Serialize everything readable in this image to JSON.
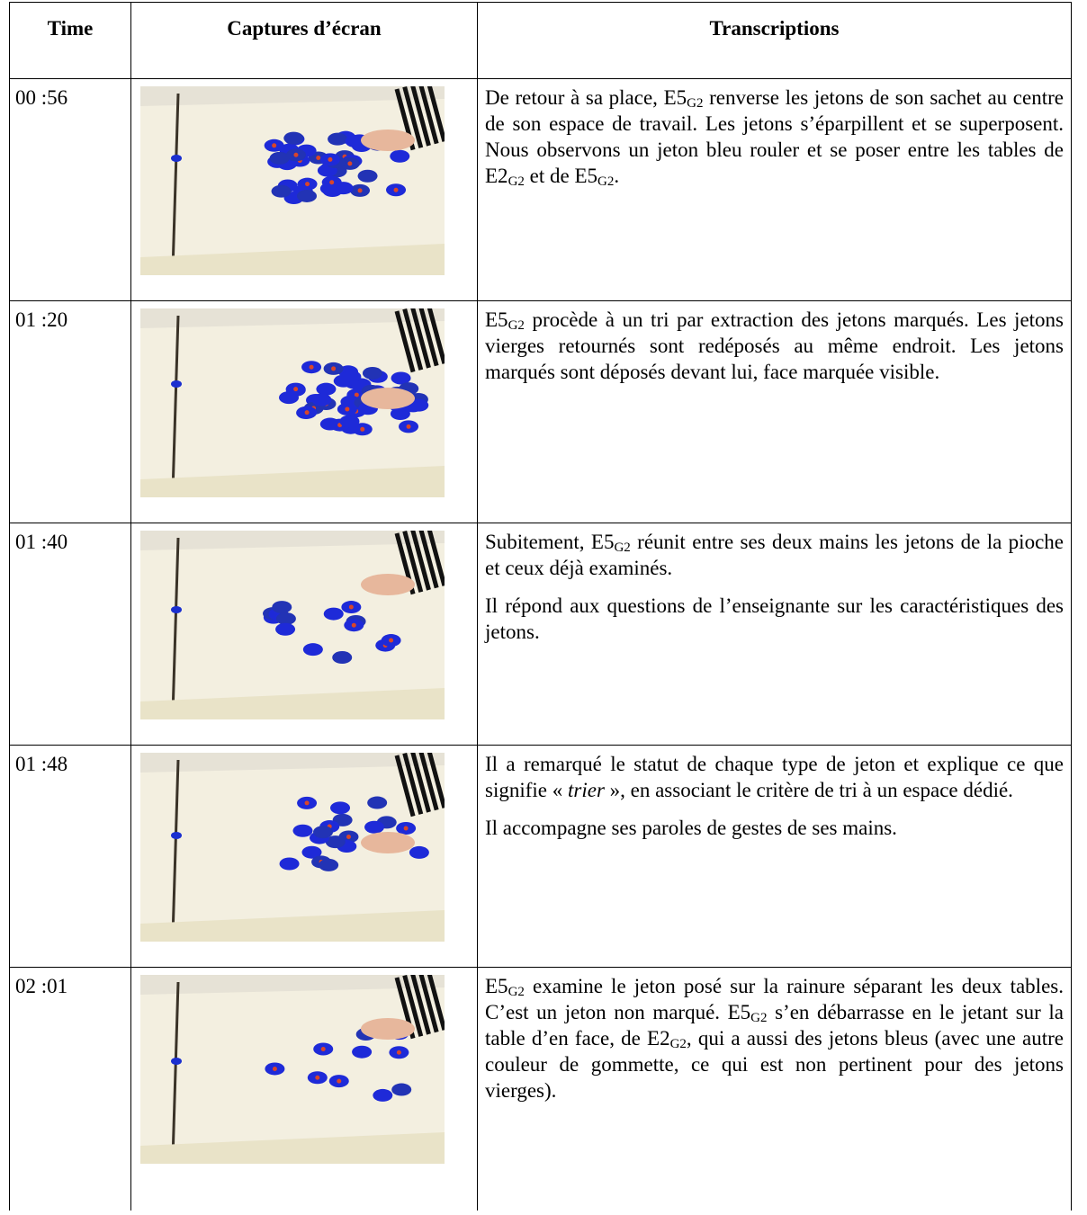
{
  "table": {
    "headers": [
      "Time",
      "Captures d’écran",
      "Transcriptions"
    ],
    "rows": [
      {
        "time": "00 :56",
        "transcription": [
          [
            "De retour à sa place, E5",
            {
              "sub": "G2"
            },
            " renverse les jetons de son sachet au centre de son espace de travail. Les jetons s’éparpillent et se superposent. Nous observons un jeton bleu rouler et se poser entre les tables de E2",
            {
              "sub": "G2"
            },
            " et de E5",
            {
              "sub": "G2"
            },
            "."
          ]
        ]
      },
      {
        "time": "01 :20",
        "transcription": [
          [
            "E5",
            {
              "sub": "G2"
            },
            " procède à un tri par extraction des jetons marqués. Les jetons vierges retournés sont redéposés au même endroit. Les jetons marqués sont déposés devant lui, face marquée visible."
          ]
        ]
      },
      {
        "time": "01 :40",
        "transcription": [
          [
            "Subitement, E5",
            {
              "sub": "G2"
            },
            " réunit entre ses deux mains les jetons de la pioche et ceux déjà examinés."
          ],
          [
            "Il répond aux questions de l’enseignante sur les caractéristiques des jetons."
          ]
        ]
      },
      {
        "time": "01 :48",
        "transcription": [
          [
            "Il a remarqué le statut de chaque type de jeton et explique ce que signifie « ",
            {
              "italic": "trier"
            },
            " », en associant le critère de tri à un espace dédié."
          ],
          [
            "Il accompagne ses paroles de gestes de ses mains."
          ]
        ]
      },
      {
        "time": "02 :01",
        "transcription": [
          [
            "E5",
            {
              "sub": "G2"
            },
            " examine le jeton posé sur la rainure séparant les deux tables. C’est un jeton non marqué. E5",
            {
              "sub": "G2"
            },
            " s’en débarrasse en le jetant sur la table d’en face, de E2",
            {
              "sub": "G2"
            },
            ", qui a aussi des jetons bleus (avec une autre couleur de gommette, ce qui est non pertinent pour des jetons vierges)."
          ]
        ]
      }
    ]
  }
}
